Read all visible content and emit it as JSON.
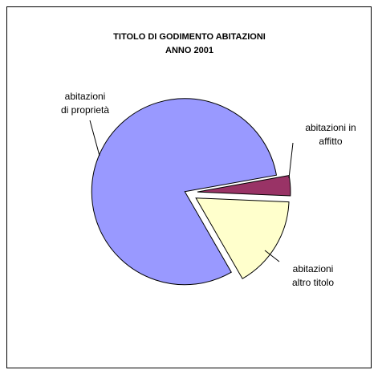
{
  "chart_data": {
    "type": "pie",
    "title": [
      "TITOLO DI GODIMENTO ABITAZIONI",
      "ANNO 2001"
    ],
    "categories": [
      "abitazioni\ndi proprietà",
      "abitazioni in\naffitto",
      "abitazioni\naltro titolo"
    ],
    "values": [
      80.5,
      3.5,
      16
    ],
    "colors": [
      "#9999ff",
      "#993366",
      "#ffffcc"
    ]
  }
}
